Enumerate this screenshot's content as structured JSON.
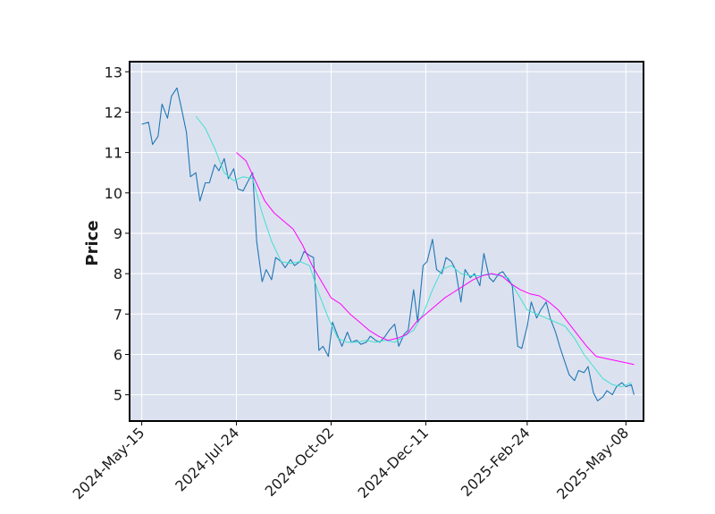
{
  "chart_data": {
    "type": "line",
    "title": "",
    "xlabel": "",
    "ylabel": "Price",
    "x_ticks": [
      "2024-May-15",
      "2024-Jul-24",
      "2024-Oct-02",
      "2024-Dec-11",
      "2025-Feb-24",
      "2025-May-08"
    ],
    "y_ticks": [
      "5",
      "6",
      "7",
      "8",
      "9",
      "10",
      "11",
      "12",
      "13"
    ],
    "ylim": [
      4.35,
      13.25
    ],
    "xlim": [
      "2024-May-06",
      "2025-May-21"
    ],
    "grid": true,
    "legend": "none",
    "colors": {
      "background": "#dce1ef",
      "grid": "#ffffff",
      "frame": "#000000",
      "price": "#1f77b4",
      "ma_short": "#40e0d0",
      "ma_long": "#ff00ff"
    },
    "series": [
      {
        "key": "price",
        "x": [
          "2024-05-15",
          "2024-05-20",
          "2024-05-23",
          "2024-05-27",
          "2024-05-30",
          "2024-06-03",
          "2024-06-06",
          "2024-06-10",
          "2024-06-13",
          "2024-06-17",
          "2024-06-20",
          "2024-06-24",
          "2024-06-27",
          "2024-07-01",
          "2024-07-04",
          "2024-07-08",
          "2024-07-11",
          "2024-07-15",
          "2024-07-18",
          "2024-07-22",
          "2024-07-25",
          "2024-07-29",
          "2024-08-01",
          "2024-08-05",
          "2024-08-08",
          "2024-08-12",
          "2024-08-15",
          "2024-08-19",
          "2024-08-22",
          "2024-08-26",
          "2024-08-29",
          "2024-09-02",
          "2024-09-05",
          "2024-09-09",
          "2024-09-12",
          "2024-09-16",
          "2024-09-19",
          "2024-09-23",
          "2024-09-26",
          "2024-09-30",
          "2024-10-03",
          "2024-10-07",
          "2024-10-10",
          "2024-10-14",
          "2024-10-17",
          "2024-10-21",
          "2024-10-24",
          "2024-10-28",
          "2024-10-31",
          "2024-11-04",
          "2024-11-07",
          "2024-11-11",
          "2024-11-14",
          "2024-11-18",
          "2024-11-21",
          "2024-11-25",
          "2024-11-28",
          "2024-12-02",
          "2024-12-05",
          "2024-12-09",
          "2024-12-12",
          "2024-12-16",
          "2024-12-19",
          "2024-12-23",
          "2024-12-26",
          "2024-12-30",
          "2025-01-02",
          "2025-01-06",
          "2025-01-09",
          "2025-01-13",
          "2025-01-16",
          "2025-01-20",
          "2025-01-23",
          "2025-01-27",
          "2025-01-30",
          "2025-02-03",
          "2025-02-06",
          "2025-02-10",
          "2025-02-13",
          "2025-02-17",
          "2025-02-20",
          "2025-02-24",
          "2025-02-27",
          "2025-03-03",
          "2025-03-06",
          "2025-03-10",
          "2025-03-13",
          "2025-03-17",
          "2025-03-20",
          "2025-03-24",
          "2025-03-27",
          "2025-03-31",
          "2025-04-03",
          "2025-04-07",
          "2025-04-10",
          "2025-04-14",
          "2025-04-17",
          "2025-04-21",
          "2025-04-24",
          "2025-04-28",
          "2025-05-01",
          "2025-05-05",
          "2025-05-08",
          "2025-05-12",
          "2025-05-14"
        ],
        "values": [
          11.7,
          11.75,
          11.2,
          11.4,
          12.2,
          11.85,
          12.4,
          12.6,
          12.15,
          11.5,
          10.4,
          10.5,
          9.8,
          10.25,
          10.25,
          10.7,
          10.55,
          10.85,
          10.35,
          10.6,
          10.1,
          10.05,
          10.25,
          10.5,
          8.8,
          7.8,
          8.1,
          7.85,
          8.4,
          8.3,
          8.15,
          8.35,
          8.2,
          8.3,
          8.55,
          8.45,
          8.4,
          6.1,
          6.2,
          5.95,
          6.8,
          6.45,
          6.2,
          6.55,
          6.3,
          6.35,
          6.25,
          6.3,
          6.45,
          6.35,
          6.3,
          6.45,
          6.6,
          6.75,
          6.2,
          6.5,
          6.6,
          7.6,
          6.8,
          8.2,
          8.3,
          8.85,
          8.1,
          8.0,
          8.4,
          8.3,
          8.1,
          7.3,
          8.1,
          7.9,
          8.0,
          7.7,
          8.5,
          7.9,
          7.8,
          8.0,
          8.05,
          7.85,
          7.7,
          6.2,
          6.15,
          6.7,
          7.3,
          6.9,
          7.1,
          7.3,
          6.9,
          6.55,
          6.2,
          5.8,
          5.5,
          5.35,
          5.6,
          5.55,
          5.7,
          5.05,
          4.85,
          4.95,
          5.1,
          5.0,
          5.2,
          5.3,
          5.2,
          5.25,
          5.0
        ]
      },
      {
        "key": "ma_short",
        "x": [
          "2024-06-24",
          "2024-07-01",
          "2024-07-08",
          "2024-07-15",
          "2024-07-22",
          "2024-07-29",
          "2024-08-05",
          "2024-08-12",
          "2024-08-19",
          "2024-08-26",
          "2024-09-02",
          "2024-09-09",
          "2024-09-16",
          "2024-09-23",
          "2024-09-30",
          "2024-10-07",
          "2024-10-14",
          "2024-10-21",
          "2024-10-28",
          "2024-11-04",
          "2024-11-11",
          "2024-11-18",
          "2024-11-25",
          "2024-12-02",
          "2024-12-09",
          "2024-12-16",
          "2024-12-23",
          "2024-12-30",
          "2025-01-06",
          "2025-01-13",
          "2025-01-20",
          "2025-01-27",
          "2025-02-03",
          "2025-02-10",
          "2025-02-17",
          "2025-02-24",
          "2025-03-03",
          "2025-03-10",
          "2025-03-17",
          "2025-03-24",
          "2025-03-31",
          "2025-04-07",
          "2025-04-14",
          "2025-04-21",
          "2025-04-28",
          "2025-05-05",
          "2025-05-12"
        ],
        "values": [
          11.9,
          11.6,
          11.1,
          10.5,
          10.3,
          10.4,
          10.35,
          9.5,
          8.8,
          8.3,
          8.25,
          8.3,
          8.2,
          7.5,
          6.9,
          6.4,
          6.3,
          6.3,
          6.35,
          6.3,
          6.35,
          6.3,
          6.45,
          6.6,
          7.0,
          7.6,
          8.1,
          8.2,
          8.0,
          7.95,
          7.95,
          8.0,
          7.95,
          7.9,
          7.5,
          7.1,
          7.0,
          6.9,
          6.8,
          6.7,
          6.4,
          6.0,
          5.7,
          5.4,
          5.25,
          5.2,
          5.3
        ]
      },
      {
        "key": "ma_long",
        "x": [
          "2024-07-24",
          "2024-07-31",
          "2024-08-07",
          "2024-08-14",
          "2024-08-21",
          "2024-08-28",
          "2024-09-04",
          "2024-09-11",
          "2024-09-18",
          "2024-09-25",
          "2024-10-02",
          "2024-10-09",
          "2024-10-16",
          "2024-10-23",
          "2024-10-30",
          "2024-11-06",
          "2024-11-13",
          "2024-11-20",
          "2024-11-27",
          "2024-12-04",
          "2024-12-11",
          "2024-12-18",
          "2024-12-25",
          "2025-01-01",
          "2025-01-08",
          "2025-01-15",
          "2025-01-22",
          "2025-01-29",
          "2025-02-05",
          "2025-02-12",
          "2025-02-19",
          "2025-02-26",
          "2025-03-05",
          "2025-03-12",
          "2025-03-19",
          "2025-03-26",
          "2025-04-02",
          "2025-04-09",
          "2025-04-16",
          "2025-04-23",
          "2025-04-30",
          "2025-05-07",
          "2025-05-14"
        ],
        "values": [
          11.0,
          10.8,
          10.3,
          9.8,
          9.5,
          9.3,
          9.1,
          8.7,
          8.2,
          7.8,
          7.4,
          7.25,
          7.0,
          6.8,
          6.6,
          6.45,
          6.35,
          6.4,
          6.5,
          6.8,
          7.0,
          7.2,
          7.4,
          7.55,
          7.7,
          7.85,
          7.95,
          8.0,
          7.95,
          7.75,
          7.6,
          7.5,
          7.45,
          7.3,
          7.1,
          6.8,
          6.5,
          6.2,
          5.95,
          5.9,
          5.85,
          5.8,
          5.75
        ]
      }
    ]
  }
}
